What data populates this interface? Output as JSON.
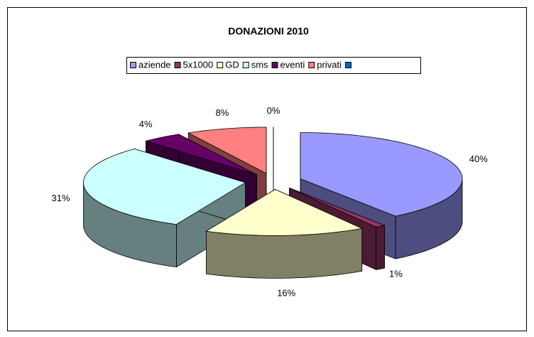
{
  "chart_data": {
    "type": "pie",
    "title": "DONAZIONI 2010",
    "categories": [
      "aziende",
      "5x1000",
      "GD",
      "sms",
      "eventi",
      "privati",
      null
    ],
    "values": [
      40,
      1,
      16,
      31,
      4,
      8,
      0
    ],
    "value_labels": [
      "40%",
      "1%",
      "16%",
      "31%",
      "4%",
      "8%",
      "0%"
    ],
    "colors": [
      "#9999ff",
      "#993366",
      "#ffffcc",
      "#ccffff",
      "#660066",
      "#ff8080",
      "#0066cc"
    ],
    "legend": "top",
    "exploded": true,
    "three_d": true
  }
}
